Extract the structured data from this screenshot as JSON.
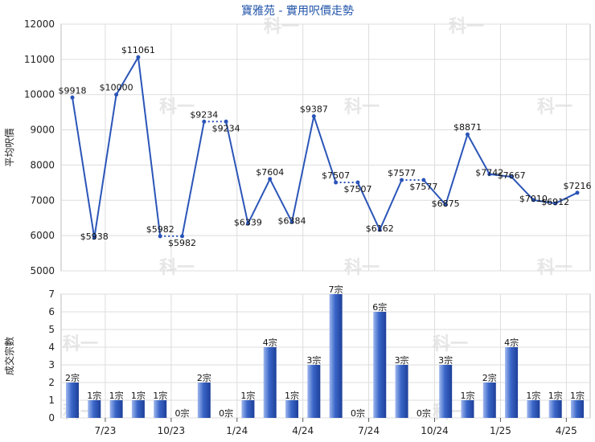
{
  "title": "寶雅苑 - 實用呎價走勢",
  "watermark": "科一",
  "colors": {
    "line": "#2b55b8",
    "bar": "#3a66c8",
    "bar_light": "#9fb8ee",
    "grid": "#dddddd",
    "title": "#2255aa"
  },
  "chart_data": [
    {
      "type": "line",
      "ylabel": "平均呎價",
      "ylim": [
        5000,
        12000
      ],
      "yticks": [
        "5000",
        "6000",
        "7000",
        "8000",
        "9000",
        "10000",
        "11000",
        "12000"
      ],
      "point_labels": [
        "$9918",
        "$5938",
        "$10000",
        "$11061",
        "$5982",
        "$5982",
        "$9234",
        "$9234",
        "$6339",
        "$7604",
        "$6384",
        "$9387",
        "$7507",
        "$7507",
        "$6162",
        "$7577",
        "$7577",
        "$6875",
        "$8871",
        "$7742",
        "$7667",
        "$7010",
        "$6912",
        "$7216"
      ],
      "values": [
        9918,
        5938,
        10000,
        11061,
        5982,
        5982,
        9234,
        9234,
        6339,
        7604,
        6384,
        9387,
        7507,
        7507,
        6162,
        7577,
        7577,
        6875,
        8871,
        7742,
        7667,
        7010,
        6912,
        7216
      ],
      "carried_forward": [
        false,
        false,
        false,
        false,
        false,
        true,
        false,
        true,
        false,
        false,
        false,
        false,
        false,
        true,
        false,
        false,
        true,
        false,
        false,
        false,
        false,
        false,
        false,
        false
      ]
    },
    {
      "type": "bar",
      "ylabel": "成交宗數",
      "ylim": [
        0,
        7
      ],
      "yticks": [
        "0",
        "1",
        "2",
        "3",
        "4",
        "5",
        "6",
        "7"
      ],
      "values": [
        2,
        1,
        1,
        1,
        1,
        0,
        2,
        0,
        1,
        4,
        1,
        3,
        7,
        0,
        6,
        3,
        0,
        3,
        1,
        2,
        4,
        1,
        1,
        1
      ],
      "bar_labels": [
        "2宗",
        "1宗",
        "1宗",
        "1宗",
        "1宗",
        "0宗",
        "2宗",
        "0宗",
        "1宗",
        "4宗",
        "1宗",
        "3宗",
        "7宗",
        "0宗",
        "6宗",
        "3宗",
        "0宗",
        "3宗",
        "1宗",
        "2宗",
        "4宗",
        "1宗",
        "1宗",
        "1宗"
      ],
      "xtick_labels": [
        "7/23",
        "10/23",
        "1/24",
        "4/24",
        "7/24",
        "10/24",
        "1/25",
        "4/25"
      ]
    }
  ]
}
